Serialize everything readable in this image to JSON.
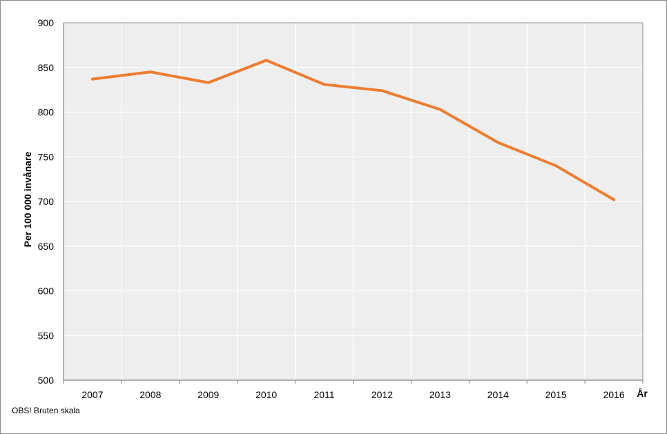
{
  "note": "OBS! Bruten skala",
  "colors": {
    "line": "#ED7D31",
    "plot_bg": "#EEEEEE",
    "grid": "#FFFFFF"
  },
  "chart_data": {
    "type": "line",
    "title": "",
    "ylabel": "Per 100 000 invånare",
    "xlabel": "År",
    "ylim": [
      500,
      900
    ],
    "yticks": [
      500,
      550,
      600,
      650,
      700,
      750,
      800,
      850,
      900
    ],
    "categories": [
      "2007",
      "2008",
      "2009",
      "2010",
      "2011",
      "2012",
      "2013",
      "2014",
      "2015",
      "2016"
    ],
    "series": [
      {
        "values": [
          837,
          845,
          833,
          858,
          831,
          824,
          803,
          766,
          740,
          702
        ]
      }
    ],
    "grid": true,
    "legend": "none"
  }
}
